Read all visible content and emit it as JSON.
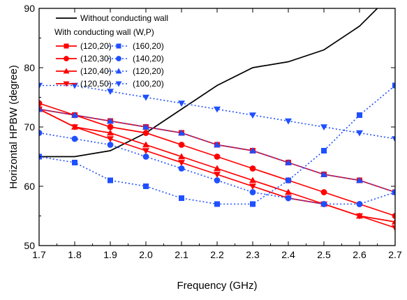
{
  "chart_data": {
    "type": "line",
    "title": "",
    "xlabel": "Frequency (GHz)",
    "ylabel": "Horizontal HPBW (degree)",
    "xlim": [
      1.7,
      2.7
    ],
    "ylim": [
      50,
      90
    ],
    "x_ticks": [
      "1.7",
      "1.8",
      "1.9",
      "2.0",
      "2.1",
      "2.2",
      "2.3",
      "2.4",
      "2.5",
      "2.6",
      "2.7"
    ],
    "y_ticks": [
      "50",
      "60",
      "70",
      "80",
      "90"
    ],
    "grid": false,
    "legend_position": "top-left",
    "legend_subtitle": "With conducting wall (W,P)",
    "x": [
      1.7,
      1.8,
      1.9,
      2.0,
      2.1,
      2.2,
      2.3,
      2.4,
      2.5,
      2.6,
      2.7
    ],
    "series": [
      {
        "name": "Without conducting wall",
        "color": "#000000",
        "style": "solid",
        "marker": "none",
        "values": [
          65,
          65,
          66,
          69,
          73,
          77,
          80,
          81,
          83,
          87,
          93
        ]
      },
      {
        "name": "(120,20)",
        "color": "#ff0000",
        "style": "solid",
        "marker": "square",
        "values": [
          73,
          72,
          71,
          70,
          69,
          67,
          66,
          64,
          62,
          61,
          59
        ]
      },
      {
        "name": "(120,30)",
        "color": "#ff0000",
        "style": "solid",
        "marker": "circle",
        "values": [
          74,
          72,
          70,
          69,
          67,
          65,
          63,
          61,
          59,
          57,
          55
        ]
      },
      {
        "name": "(120,40)",
        "color": "#ff0000",
        "style": "solid",
        "marker": "triangle-up",
        "values": [
          73,
          70,
          69,
          67,
          65,
          63,
          61,
          59,
          57,
          55,
          54
        ]
      },
      {
        "name": "(120,50)",
        "color": "#ff0000",
        "style": "solid",
        "marker": "triangle-down",
        "values": [
          73,
          70,
          68,
          66,
          64,
          62,
          60,
          58,
          57,
          55,
          53
        ]
      },
      {
        "name": "(160,20)",
        "color": "#1f4fff",
        "style": "dotted",
        "marker": "square",
        "values": [
          65,
          64,
          61,
          60,
          58,
          57,
          57,
          61,
          66,
          72,
          77
        ]
      },
      {
        "name": "(140,20)",
        "color": "#1f4fff",
        "style": "dotted",
        "marker": "circle",
        "values": [
          69,
          68,
          67,
          65,
          63,
          61,
          59,
          58,
          57,
          57,
          59
        ]
      },
      {
        "name": "(120,20)",
        "color": "#1f4fff",
        "style": "dotted",
        "marker": "triangle-up",
        "values": [
          73,
          72,
          71,
          70,
          69,
          67,
          66,
          64,
          62,
          61,
          59
        ]
      },
      {
        "name": "(100,20)",
        "color": "#1f4fff",
        "style": "dotted",
        "marker": "triangle-down",
        "values": [
          77,
          77,
          76,
          75,
          74,
          73,
          72,
          71,
          70,
          69,
          68
        ]
      }
    ]
  }
}
